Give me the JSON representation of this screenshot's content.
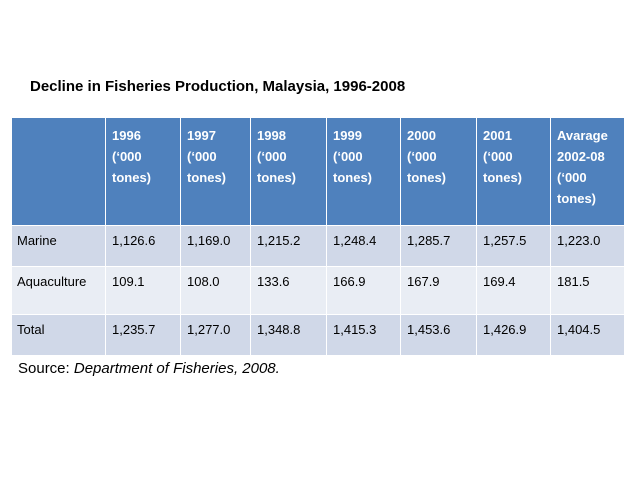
{
  "title": "Decline in Fisheries Production, Malaysia, 1996-2008",
  "table": {
    "headers": [
      [
        ""
      ],
      [
        "1996",
        "(‘000",
        "tones)"
      ],
      [
        "1997",
        "(‘000",
        "tones)"
      ],
      [
        "1998",
        "(‘000",
        "tones)"
      ],
      [
        "1999",
        "(‘000",
        "tones)"
      ],
      [
        "2000",
        "(‘000",
        "tones)"
      ],
      [
        "2001",
        "(‘000",
        "tones)"
      ],
      [
        "Avarage",
        "2002-08",
        "(‘000",
        "tones)"
      ]
    ],
    "rows": [
      [
        "Marine",
        "1,126.6",
        "1,169.0",
        "1,215.2",
        "1,248.4",
        "1,285.7",
        "1,257.5",
        "1,223.0"
      ],
      [
        "Aquaculture",
        "109.1",
        "108.0",
        "133.6",
        "166.9",
        "167.9",
        "169.4",
        "181.5"
      ],
      [
        "Total",
        "1,235.7",
        "1,277.0",
        "1,348.8",
        "1,415.3",
        "1,453.6",
        "1,426.9",
        "1,404.5"
      ]
    ]
  },
  "source": {
    "label": "Source: ",
    "text": "Department of Fisheries, 2008."
  },
  "colors": {
    "header_bg": "#4f81bd",
    "row_dark": "#d0d8e8",
    "row_light": "#e9edf4"
  }
}
